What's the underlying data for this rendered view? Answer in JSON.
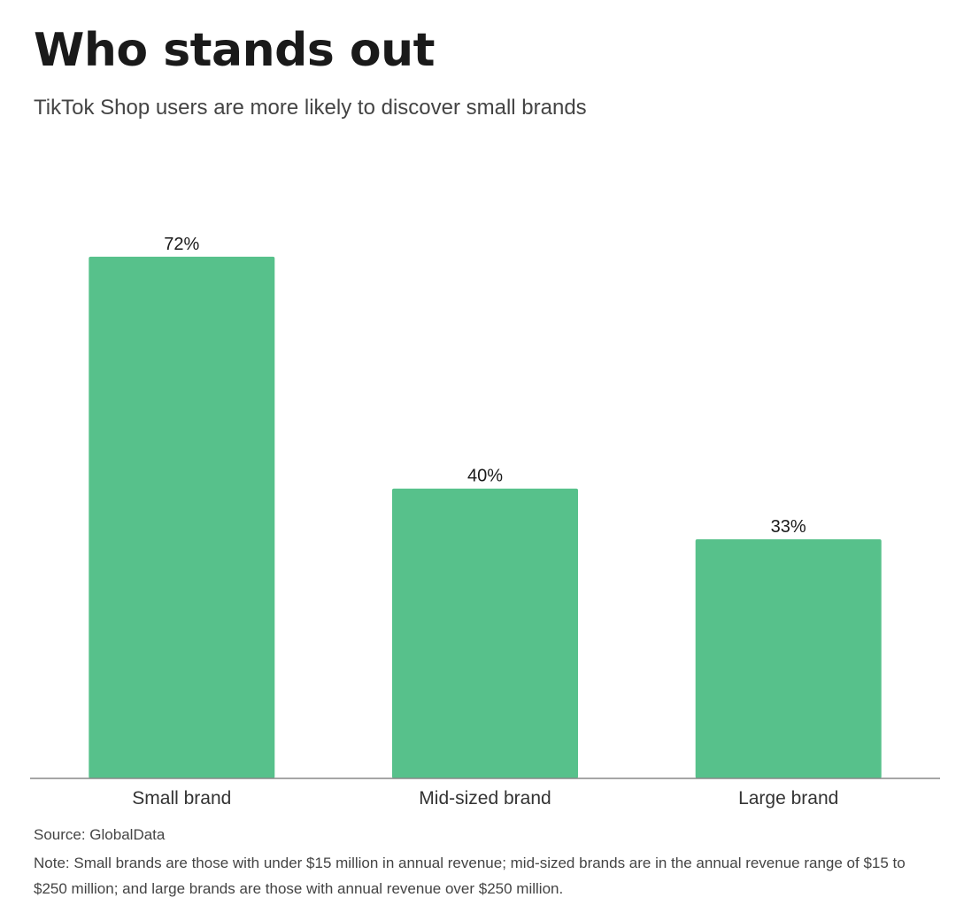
{
  "header": {
    "title": "Who stands out",
    "subtitle": "TikTok Shop users are more likely to discover small brands"
  },
  "chart_data": {
    "type": "bar",
    "categories": [
      "Small brand",
      "Mid-sized brand",
      "Large brand"
    ],
    "values": [
      72,
      40,
      33
    ],
    "value_labels": [
      "72%",
      "40%",
      "33%"
    ],
    "title": "Who stands out",
    "subtitle": "TikTok Shop users are more likely to discover small brands",
    "xlabel": "",
    "ylabel": "",
    "ylim": [
      0,
      80
    ],
    "grid": false,
    "legend": "none",
    "bar_color": "#57c18b",
    "axis_color": "#888888"
  },
  "footer": {
    "source": "Source: GlobalData",
    "note": "Note: Small brands are those with under $15 million in annual revenue; mid-sized brands are in the annual revenue range of $15 to $250 million; and large brands are those with  annual revenue over $250 million."
  }
}
